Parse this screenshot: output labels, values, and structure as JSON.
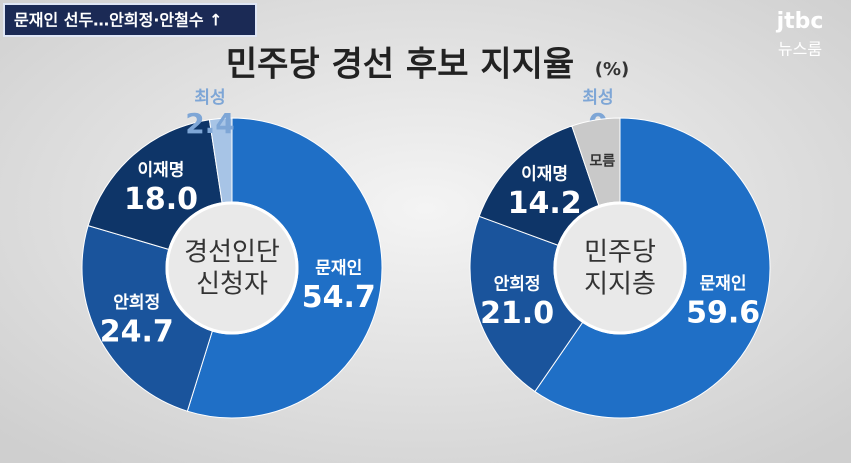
{
  "caption": "문재인 선두…안희정·안철수 ↑",
  "logo": {
    "brand": "jtbc",
    "program": "뉴스룸"
  },
  "title": "민주당 경선 후보 지지율",
  "unit": "(%)",
  "chart_data": [
    {
      "type": "donut",
      "center_label": [
        "경선인단",
        "신청자"
      ],
      "categories": [
        "문재인",
        "안희정",
        "이재명",
        "최성"
      ],
      "values": [
        54.7,
        24.7,
        18.0,
        2.4
      ],
      "value_labels": [
        "54.7",
        "24.7",
        "18.0",
        "2.4"
      ],
      "colors": [
        "#1f6fc6",
        "#1a549c",
        "#0e3568",
        "#a7c4e6"
      ]
    },
    {
      "type": "donut",
      "center_label": [
        "민주당",
        "지지층"
      ],
      "categories": [
        "문재인",
        "안희정",
        "이재명",
        "최성",
        "모름"
      ],
      "values": [
        59.6,
        21.0,
        14.2,
        0,
        5.2
      ],
      "value_labels": [
        "59.6",
        "21.0",
        "14.2",
        "0",
        null
      ],
      "colors": [
        "#1f6fc6",
        "#1a549c",
        "#0e3568",
        "#a7c4e6",
        "#c9c9c9"
      ]
    }
  ]
}
